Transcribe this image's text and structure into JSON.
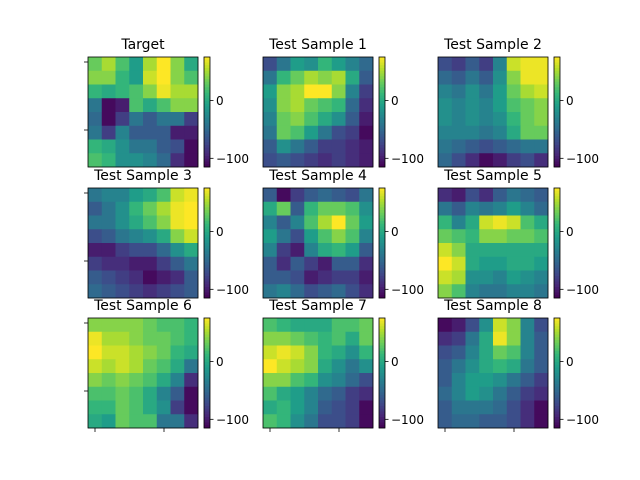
{
  "chart_data": [
    {
      "type": "heatmap",
      "title": "Target",
      "colormap": "viridis",
      "vmin": -115,
      "vmax": 75,
      "colorbar_ticks": [
        0,
        -100
      ],
      "grid": [
        [
          30,
          50,
          20,
          -10,
          50,
          75,
          40,
          0
        ],
        [
          40,
          40,
          10,
          -10,
          60,
          75,
          40,
          20
        ],
        [
          10,
          0,
          10,
          20,
          40,
          70,
          50,
          50
        ],
        [
          -40,
          -110,
          -100,
          20,
          0,
          20,
          40,
          40
        ],
        [
          -50,
          -110,
          -80,
          -40,
          -60,
          -40,
          -40,
          -80
        ],
        [
          -40,
          -80,
          -30,
          -60,
          -60,
          -60,
          -100,
          -100
        ],
        [
          10,
          0,
          -20,
          -40,
          -40,
          -60,
          -70,
          -110
        ],
        [
          20,
          10,
          -20,
          -20,
          -30,
          -50,
          -90,
          -110
        ]
      ]
    },
    {
      "type": "heatmap",
      "title": "Test Sample 1",
      "colormap": "viridis",
      "vmin": -115,
      "vmax": 75,
      "colorbar_ticks": [
        0,
        -100
      ],
      "grid": [
        [
          -70,
          -40,
          -10,
          -20,
          10,
          -10,
          -30,
          -50
        ],
        [
          -40,
          10,
          30,
          50,
          40,
          50,
          0,
          -60
        ],
        [
          -10,
          40,
          50,
          75,
          75,
          40,
          -30,
          -80
        ],
        [
          -20,
          40,
          50,
          30,
          20,
          10,
          -50,
          -90
        ],
        [
          -30,
          30,
          40,
          20,
          0,
          -20,
          -60,
          -100
        ],
        [
          -40,
          30,
          20,
          -10,
          -40,
          -70,
          -80,
          -110
        ],
        [
          -60,
          -20,
          -40,
          -60,
          -80,
          -80,
          -90,
          -100
        ],
        [
          -70,
          -60,
          -70,
          -80,
          -90,
          -80,
          -90,
          -100
        ]
      ]
    },
    {
      "type": "heatmap",
      "title": "Test Sample 2",
      "colormap": "viridis",
      "vmin": -115,
      "vmax": 75,
      "colorbar_ticks": [
        0,
        -100
      ],
      "grid": [
        [
          -70,
          -80,
          -60,
          -80,
          -30,
          60,
          70,
          70
        ],
        [
          -50,
          -60,
          -40,
          -60,
          -20,
          40,
          70,
          70
        ],
        [
          -30,
          -40,
          -20,
          -40,
          -10,
          30,
          50,
          60
        ],
        [
          -20,
          -30,
          -20,
          -30,
          -10,
          20,
          30,
          40
        ],
        [
          -20,
          -30,
          -20,
          -30,
          -20,
          10,
          30,
          40
        ],
        [
          -30,
          -30,
          -30,
          -40,
          -30,
          0,
          30,
          30
        ],
        [
          -40,
          -50,
          -60,
          -70,
          -60,
          -50,
          -40,
          -40
        ],
        [
          -50,
          -70,
          -90,
          -110,
          -100,
          -80,
          -70,
          -90
        ]
      ]
    },
    {
      "type": "heatmap",
      "title": "Test Sample 3",
      "colormap": "viridis",
      "vmin": -115,
      "vmax": 75,
      "colorbar_ticks": [
        0,
        -100
      ],
      "grid": [
        [
          -40,
          -30,
          -30,
          -10,
          0,
          20,
          60,
          70
        ],
        [
          -60,
          -40,
          -20,
          10,
          30,
          50,
          70,
          75
        ],
        [
          -40,
          -40,
          -20,
          0,
          20,
          40,
          70,
          75
        ],
        [
          -70,
          -60,
          -40,
          -30,
          -20,
          0,
          40,
          60
        ],
        [
          -100,
          -100,
          -80,
          -70,
          -70,
          -50,
          -20,
          0
        ],
        [
          -80,
          -90,
          -90,
          -100,
          -100,
          -80,
          -60,
          -40
        ],
        [
          -60,
          -70,
          -80,
          -90,
          -110,
          -100,
          -90,
          -60
        ],
        [
          -50,
          -60,
          -70,
          -80,
          -90,
          -80,
          -70,
          -60
        ]
      ]
    },
    {
      "type": "heatmap",
      "title": "Test Sample 4",
      "colormap": "viridis",
      "vmin": -115,
      "vmax": 75,
      "colorbar_ticks": [
        0,
        -100
      ],
      "grid": [
        [
          -60,
          -110,
          -80,
          -60,
          -50,
          -60,
          -70,
          -40
        ],
        [
          0,
          30,
          -60,
          10,
          30,
          30,
          20,
          -20
        ],
        [
          -30,
          -60,
          -30,
          20,
          50,
          75,
          30,
          -10
        ],
        [
          -10,
          -40,
          -70,
          -10,
          20,
          40,
          20,
          -30
        ],
        [
          -30,
          -80,
          -100,
          -30,
          0,
          10,
          -10,
          -60
        ],
        [
          -60,
          -90,
          -60,
          -80,
          -100,
          -60,
          -60,
          -90
        ],
        [
          -60,
          -60,
          -70,
          -100,
          -90,
          -80,
          -80,
          -100
        ],
        [
          -40,
          -30,
          -50,
          -70,
          -60,
          -50,
          -70,
          -90
        ]
      ]
    },
    {
      "type": "heatmap",
      "title": "Test Sample 5",
      "colormap": "viridis",
      "vmin": -115,
      "vmax": 75,
      "colorbar_ticks": [
        0,
        -100
      ],
      "grid": [
        [
          -90,
          -100,
          -70,
          -90,
          -60,
          -40,
          -50,
          -60
        ],
        [
          -40,
          -60,
          -30,
          -40,
          -30,
          -10,
          -30,
          -50
        ],
        [
          10,
          -30,
          0,
          60,
          70,
          60,
          20,
          0
        ],
        [
          30,
          20,
          10,
          40,
          40,
          30,
          30,
          20
        ],
        [
          60,
          40,
          0,
          0,
          0,
          0,
          0,
          0
        ],
        [
          75,
          60,
          0,
          -10,
          -10,
          0,
          0,
          -10
        ],
        [
          60,
          50,
          -20,
          -20,
          -30,
          -10,
          -20,
          -30
        ],
        [
          40,
          20,
          -30,
          -40,
          -40,
          -30,
          -30,
          -40
        ]
      ]
    },
    {
      "type": "heatmap",
      "title": "Test Sample 6",
      "colormap": "viridis",
      "vmin": -115,
      "vmax": 75,
      "colorbar_ticks": [
        0,
        -100
      ],
      "grid": [
        [
          40,
          40,
          40,
          40,
          30,
          20,
          20,
          10
        ],
        [
          70,
          50,
          50,
          40,
          30,
          30,
          20,
          10
        ],
        [
          75,
          60,
          60,
          50,
          40,
          30,
          10,
          0
        ],
        [
          60,
          50,
          60,
          50,
          30,
          20,
          0,
          -40
        ],
        [
          40,
          30,
          40,
          30,
          20,
          0,
          -30,
          -90
        ],
        [
          20,
          20,
          30,
          20,
          0,
          -30,
          -60,
          -110
        ],
        [
          10,
          10,
          30,
          20,
          0,
          -20,
          -80,
          -110
        ],
        [
          0,
          -10,
          30,
          20,
          20,
          -40,
          -40,
          -90
        ]
      ]
    },
    {
      "type": "heatmap",
      "title": "Test Sample 7",
      "colormap": "viridis",
      "vmin": -115,
      "vmax": 75,
      "colorbar_ticks": [
        0,
        -100
      ],
      "grid": [
        [
          20,
          10,
          0,
          0,
          0,
          20,
          20,
          30
        ],
        [
          40,
          40,
          30,
          20,
          10,
          20,
          0,
          30
        ],
        [
          60,
          70,
          60,
          40,
          10,
          0,
          -20,
          10
        ],
        [
          75,
          60,
          50,
          40,
          0,
          -20,
          -40,
          -20
        ],
        [
          40,
          40,
          20,
          10,
          -20,
          -30,
          -50,
          -70
        ],
        [
          20,
          0,
          -10,
          -30,
          -50,
          -60,
          -80,
          -90
        ],
        [
          0,
          10,
          -10,
          -30,
          -60,
          -70,
          -80,
          -110
        ],
        [
          20,
          10,
          -20,
          -40,
          -70,
          -70,
          -80,
          -110
        ]
      ]
    },
    {
      "type": "heatmap",
      "title": "Test Sample 8",
      "colormap": "viridis",
      "vmin": -115,
      "vmax": 75,
      "colorbar_ticks": [
        0,
        -100
      ],
      "grid": [
        [
          -110,
          -100,
          -70,
          -20,
          60,
          40,
          -30,
          -70
        ],
        [
          -90,
          -80,
          -40,
          0,
          70,
          40,
          -30,
          -60
        ],
        [
          -70,
          -60,
          -30,
          0,
          30,
          20,
          -30,
          -60
        ],
        [
          -60,
          -40,
          -20,
          0,
          10,
          0,
          -40,
          -60
        ],
        [
          -60,
          -30,
          -10,
          -10,
          -20,
          -40,
          -60,
          -80
        ],
        [
          -50,
          -30,
          -10,
          -20,
          -40,
          -60,
          -80,
          -90
        ],
        [
          -60,
          -40,
          -40,
          -40,
          -50,
          -70,
          -90,
          -110
        ],
        [
          -60,
          -50,
          -50,
          -60,
          -60,
          -70,
          -90,
          -110
        ]
      ]
    }
  ]
}
